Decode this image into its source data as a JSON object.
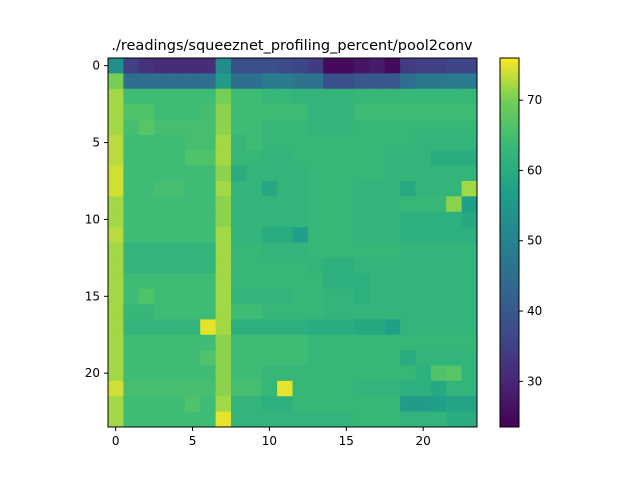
{
  "chart_data": {
    "type": "heatmap",
    "title": "./readings/squeeznet_profiling_percent/pool2conv",
    "xlabel": "",
    "ylabel": "",
    "rows": 24,
    "cols": 24,
    "xlim": [
      -0.5,
      23.5
    ],
    "ylim": [
      23.5,
      -0.5
    ],
    "x_ticks": [
      0,
      5,
      10,
      15,
      20
    ],
    "y_ticks": [
      0,
      5,
      10,
      15,
      20
    ],
    "colorbar": {
      "vmin": 23.5,
      "vmax": 76,
      "ticks": [
        30,
        40,
        50,
        60,
        70
      ],
      "colormap": "viridis"
    },
    "grid": false,
    "values": [
      [
        53,
        35,
        32,
        31,
        31,
        31,
        31,
        52,
        38,
        38,
        38,
        37,
        36,
        34,
        25,
        25,
        27,
        28,
        25,
        34,
        35,
        35,
        36,
        36
      ],
      [
        70,
        45,
        45,
        45,
        45,
        45,
        45,
        56,
        45,
        45,
        48,
        48,
        46,
        46,
        38,
        38,
        40,
        40,
        40,
        45,
        47,
        47,
        48,
        48
      ],
      [
        72,
        64,
        64,
        64,
        64,
        64,
        64,
        70,
        64,
        64,
        63,
        63,
        62,
        62,
        62,
        62,
        63,
        63,
        63,
        63,
        63,
        63,
        63,
        63
      ],
      [
        72,
        66,
        66,
        64,
        64,
        64,
        65,
        71,
        64,
        64,
        64,
        64,
        64,
        62,
        62,
        62,
        64,
        64,
        64,
        64,
        64,
        64,
        64,
        64
      ],
      [
        72,
        65,
        67,
        65,
        65,
        65,
        65,
        71,
        64,
        64,
        63,
        63,
        63,
        62,
        62,
        62,
        63,
        63,
        63,
        63,
        63,
        63,
        63,
        63
      ],
      [
        73,
        64,
        64,
        64,
        64,
        65,
        65,
        72,
        63,
        64,
        63,
        63,
        63,
        63,
        63,
        63,
        63,
        63,
        63,
        63,
        62,
        62,
        62,
        62
      ],
      [
        73,
        64,
        64,
        64,
        64,
        66,
        66,
        72,
        63,
        63,
        62,
        62,
        63,
        63,
        63,
        63,
        63,
        63,
        62,
        62,
        62,
        60,
        60,
        60
      ],
      [
        74,
        64,
        64,
        64,
        64,
        64,
        64,
        71,
        60,
        62,
        62,
        62,
        62,
        63,
        63,
        63,
        63,
        63,
        62,
        62,
        62,
        62,
        62,
        62
      ],
      [
        74,
        64,
        64,
        65,
        65,
        64,
        64,
        72,
        62,
        62,
        59,
        62,
        62,
        63,
        63,
        63,
        62,
        62,
        62,
        59,
        62,
        62,
        62,
        72
      ],
      [
        72,
        64,
        64,
        64,
        64,
        64,
        64,
        71,
        62,
        62,
        62,
        62,
        62,
        63,
        63,
        63,
        62,
        62,
        62,
        63,
        63,
        63,
        71,
        57
      ],
      [
        72,
        64,
        64,
        64,
        64,
        64,
        64,
        71,
        62,
        62,
        62,
        62,
        62,
        63,
        63,
        63,
        62,
        62,
        62,
        61,
        61,
        61,
        61,
        59
      ],
      [
        73,
        64,
        64,
        64,
        64,
        64,
        64,
        72,
        62,
        62,
        60,
        60,
        57,
        63,
        63,
        63,
        62,
        62,
        62,
        61,
        61,
        61,
        61,
        61
      ],
      [
        72,
        62,
        62,
        62,
        62,
        62,
        62,
        72,
        63,
        63,
        62,
        62,
        62,
        63,
        63,
        63,
        63,
        63,
        63,
        62,
        62,
        62,
        62,
        62
      ],
      [
        72,
        62,
        62,
        62,
        62,
        62,
        62,
        72,
        63,
        63,
        63,
        63,
        63,
        62,
        61,
        61,
        62,
        62,
        62,
        62,
        62,
        62,
        62,
        62
      ],
      [
        72,
        64,
        64,
        64,
        64,
        64,
        64,
        72,
        63,
        63,
        63,
        63,
        63,
        63,
        61,
        61,
        61,
        62,
        62,
        62,
        62,
        62,
        62,
        62
      ],
      [
        72,
        64,
        66,
        64,
        64,
        64,
        64,
        72,
        62,
        62,
        62,
        62,
        63,
        63,
        62,
        62,
        61,
        62,
        62,
        62,
        62,
        62,
        62,
        62
      ],
      [
        72,
        63,
        63,
        64,
        64,
        64,
        64,
        72,
        64,
        64,
        63,
        63,
        63,
        63,
        62,
        62,
        62,
        62,
        62,
        62,
        62,
        62,
        62,
        62
      ],
      [
        72,
        62,
        62,
        62,
        62,
        62,
        75,
        72,
        61,
        61,
        61,
        61,
        61,
        60,
        60,
        60,
        59,
        59,
        57,
        62,
        62,
        62,
        62,
        62
      ],
      [
        72,
        64,
        64,
        64,
        64,
        64,
        64,
        71,
        64,
        64,
        64,
        64,
        64,
        63,
        63,
        63,
        63,
        63,
        63,
        63,
        63,
        63,
        63,
        63
      ],
      [
        72,
        64,
        64,
        64,
        64,
        64,
        66,
        71,
        64,
        64,
        64,
        64,
        64,
        63,
        63,
        63,
        63,
        63,
        63,
        60,
        62,
        62,
        62,
        62
      ],
      [
        72,
        64,
        64,
        64,
        64,
        64,
        64,
        71,
        64,
        64,
        63,
        63,
        63,
        63,
        63,
        63,
        63,
        63,
        63,
        63,
        61,
        66,
        67,
        62
      ],
      [
        74,
        65,
        65,
        65,
        65,
        65,
        65,
        71,
        65,
        65,
        63,
        75,
        63,
        63,
        63,
        63,
        62,
        62,
        62,
        61,
        61,
        59,
        62,
        62
      ],
      [
        72,
        64,
        64,
        64,
        64,
        66,
        64,
        72,
        62,
        62,
        61,
        61,
        63,
        63,
        63,
        63,
        63,
        63,
        63,
        56,
        56,
        57,
        58,
        58
      ],
      [
        72,
        64,
        64,
        64,
        64,
        64,
        64,
        75,
        62,
        62,
        62,
        62,
        62,
        62,
        62,
        62,
        63,
        63,
        63,
        62,
        62,
        62,
        60,
        60
      ]
    ]
  }
}
